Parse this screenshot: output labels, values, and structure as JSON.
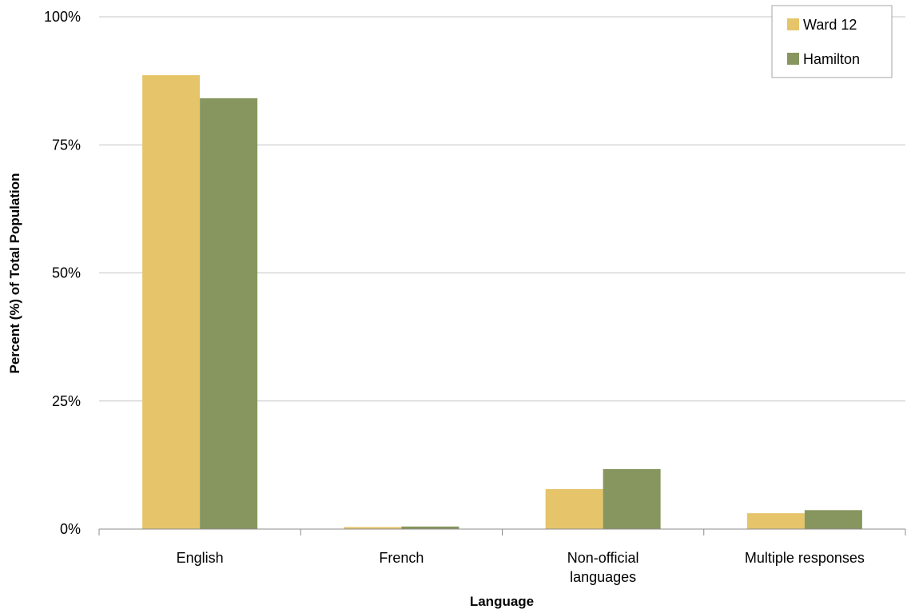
{
  "chart_data": {
    "type": "bar",
    "xlabel": "Language",
    "ylabel": "Percent (%) of Total Population",
    "categories": [
      "English",
      "French",
      "Non-official languages",
      "Multiple responses"
    ],
    "category_lines": [
      [
        "English"
      ],
      [
        "French"
      ],
      [
        "Non-official",
        "languages"
      ],
      [
        "Multiple responses"
      ]
    ],
    "ylim": [
      0,
      100
    ],
    "yticks": [
      0,
      25,
      50,
      75,
      100
    ],
    "ytick_labels": [
      "0%",
      "25%",
      "50%",
      "75%",
      "100%"
    ],
    "grid": true,
    "legend_position": "top-right",
    "series": [
      {
        "name": "Ward 12",
        "color": "#e6c46a",
        "values": [
          88.6,
          0.4,
          7.8,
          3.1
        ]
      },
      {
        "name": "Hamilton",
        "color": "#86965e",
        "values": [
          84.1,
          0.5,
          11.7,
          3.7
        ]
      }
    ]
  }
}
